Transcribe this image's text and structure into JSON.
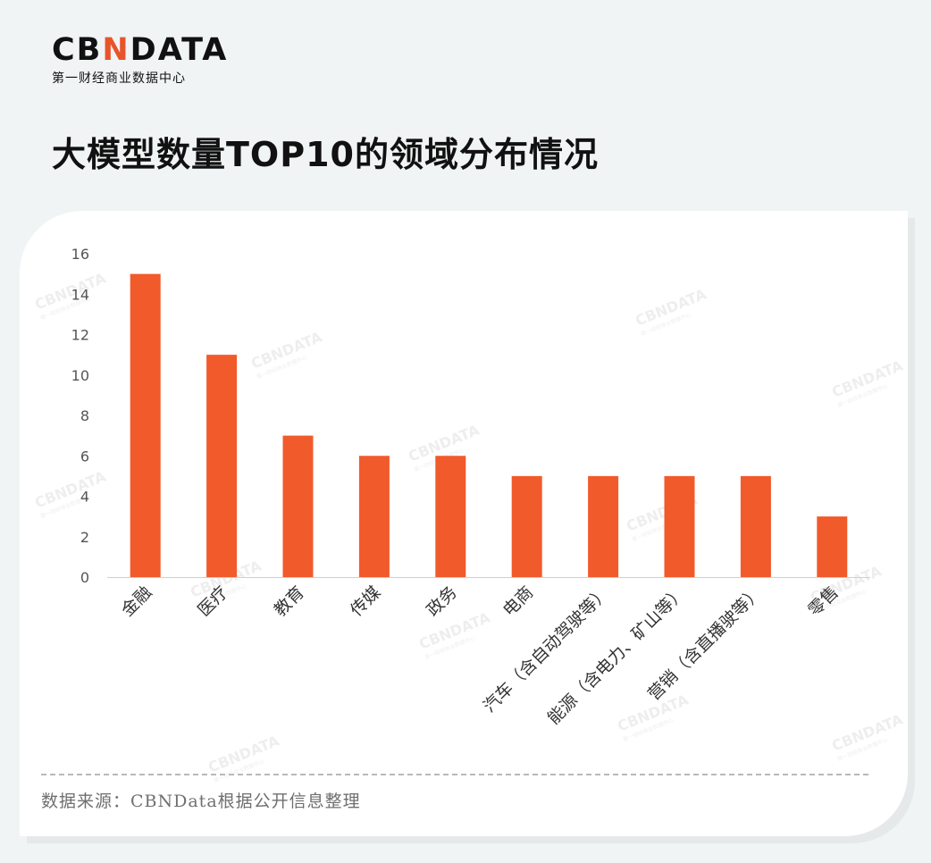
{
  "brand": {
    "logo_main": "CBNDATA",
    "logo_sub": "第一财经商业数据中心",
    "accent_color": "#e8542a"
  },
  "page_title": "大模型数量TOP10的领域分布情况",
  "source_note": "数据来源：CBNData根据公开信息整理",
  "watermark": {
    "main": "CBNDATA",
    "sub": "第一财经商业数据中心"
  },
  "chart_data": {
    "type": "bar",
    "title": "",
    "xlabel": "",
    "ylabel": "",
    "categories": [
      "金融",
      "医疗",
      "教育",
      "传媒",
      "政务",
      "电商",
      "汽车（含自动驾驶等）",
      "能源（含电力、矿山等）",
      "营销（含直播驶等）",
      "零售"
    ],
    "values": [
      15,
      11,
      7,
      6,
      6,
      5,
      5,
      5,
      5,
      3
    ],
    "ylim": [
      0,
      16
    ],
    "yticks": [
      0,
      2,
      4,
      6,
      8,
      10,
      12,
      14,
      16
    ],
    "bar_color": "#f15a2b",
    "grid": false,
    "legend": "none"
  }
}
